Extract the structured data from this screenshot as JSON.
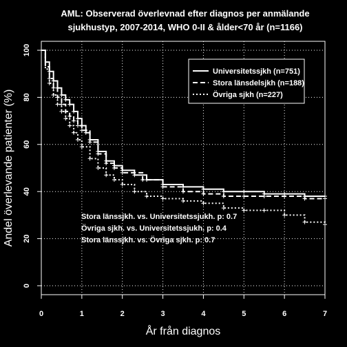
{
  "chart_data": {
    "type": "line",
    "title_line1": "AML: Observerad överlevnad efter diagnos per anmälande",
    "title_line2": "sjukhustyp, 2007-2014, WHO 0-II & ålder<70 år (n=1166)",
    "xlabel": "År från diagnos",
    "ylabel": "Andel överlevande patienter (%)",
    "xlim": [
      0,
      7
    ],
    "ylim": [
      0,
      100
    ],
    "xticks": [
      "0",
      "1",
      "2",
      "3",
      "4",
      "5",
      "6",
      "7"
    ],
    "yticks": [
      "0",
      "20",
      "40",
      "60",
      "80",
      "100"
    ],
    "grid": true,
    "legend_position": "top-right",
    "series": [
      {
        "name": "Universitetssjkh (n=751)",
        "style": "solid",
        "x": [
          0,
          0.1,
          0.2,
          0.3,
          0.4,
          0.5,
          0.6,
          0.7,
          0.8,
          0.9,
          1.0,
          1.1,
          1.2,
          1.4,
          1.6,
          1.8,
          2.0,
          2.3,
          2.6,
          3.0,
          3.5,
          4.0,
          4.5,
          5.0,
          5.5,
          6.0,
          6.5,
          7.0
        ],
        "y": [
          100,
          95,
          91,
          87,
          84,
          81,
          79,
          77,
          74,
          71,
          68,
          65,
          62,
          57,
          53,
          51,
          49,
          47,
          45,
          43,
          42,
          41,
          40,
          40,
          39,
          39,
          38,
          38
        ]
      },
      {
        "name": "Stora länsdelsjkh (n=188)",
        "style": "dashed",
        "x": [
          0,
          0.1,
          0.2,
          0.3,
          0.4,
          0.5,
          0.6,
          0.7,
          0.8,
          0.9,
          1.0,
          1.2,
          1.4,
          1.6,
          1.8,
          2.0,
          2.5,
          3.0,
          3.5,
          4.0,
          4.5,
          5.0,
          5.5,
          6.0,
          6.5,
          7.0
        ],
        "y": [
          100,
          93,
          88,
          84,
          80,
          77,
          74,
          72,
          70,
          68,
          66,
          61,
          56,
          52,
          50,
          48,
          45,
          42,
          40,
          39,
          38,
          38,
          38,
          38,
          37,
          37
        ]
      },
      {
        "name": "Övriga sjkh (n=227)",
        "style": "dotted",
        "x": [
          0,
          0.1,
          0.2,
          0.3,
          0.4,
          0.5,
          0.6,
          0.7,
          0.8,
          0.9,
          1.0,
          1.2,
          1.4,
          1.6,
          1.8,
          2.0,
          2.3,
          2.6,
          3.0,
          3.5,
          4.0,
          4.5,
          5.0,
          5.5,
          6.0,
          6.5,
          7.0
        ],
        "y": [
          100,
          92,
          86,
          81,
          77,
          74,
          71,
          68,
          65,
          62,
          59,
          54,
          50,
          47,
          45,
          43,
          40,
          38,
          37,
          36,
          35,
          33,
          32,
          32,
          30,
          27,
          26
        ]
      }
    ],
    "annotations": [
      "Stora länssjkh. vs. Universitetssjukh. p: 0.7",
      "Övriga sjkh. vs. Universitetssjukh. p: 0.4",
      "Stora länssjkh. vs. Övriga sjkh. p: 0.7"
    ]
  }
}
